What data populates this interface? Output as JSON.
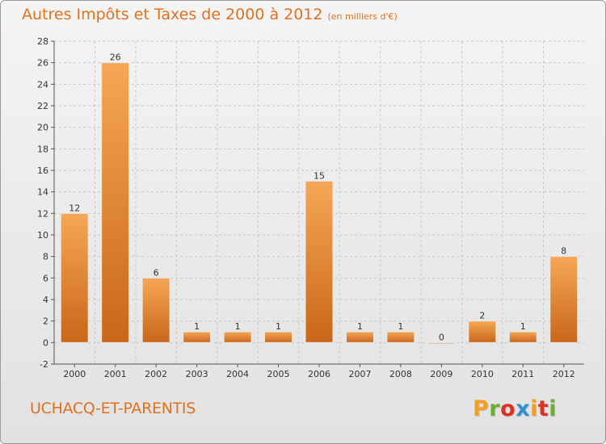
{
  "title": "Autres Impôts et Taxes de 2000 à 2012",
  "subtitle": "(en milliers d'€)",
  "commune": "UCHACQ-ET-PARENTIS",
  "logo": {
    "letters": [
      "P",
      "r",
      "o",
      "x",
      "i",
      "t",
      "i"
    ],
    "colors": [
      "#f0a020",
      "#6ab030",
      "#e03020",
      "#2f8fd8",
      "#f0a020",
      "#e03020",
      "#6ab030"
    ]
  },
  "colors": {
    "bar_light": "#f5a54f",
    "bar_dark": "#c9661a",
    "title": "#e3701f"
  },
  "chart_data": {
    "type": "bar",
    "categories": [
      "2000",
      "2001",
      "2002",
      "2003",
      "2004",
      "2005",
      "2006",
      "2007",
      "2008",
      "2009",
      "2010",
      "2011",
      "2012"
    ],
    "values": [
      12,
      26,
      6,
      1,
      1,
      1,
      15,
      1,
      1,
      0,
      2,
      1,
      8
    ],
    "data_labels": [
      "12",
      "26",
      "6",
      "1",
      "1",
      "1",
      "15",
      "1",
      "1",
      "0",
      "2",
      "1",
      "8"
    ],
    "ylim": [
      -2,
      28
    ],
    "yticks": [
      -2,
      0,
      2,
      4,
      6,
      8,
      10,
      12,
      14,
      16,
      18,
      20,
      22,
      24,
      26,
      28
    ],
    "grid": true
  }
}
